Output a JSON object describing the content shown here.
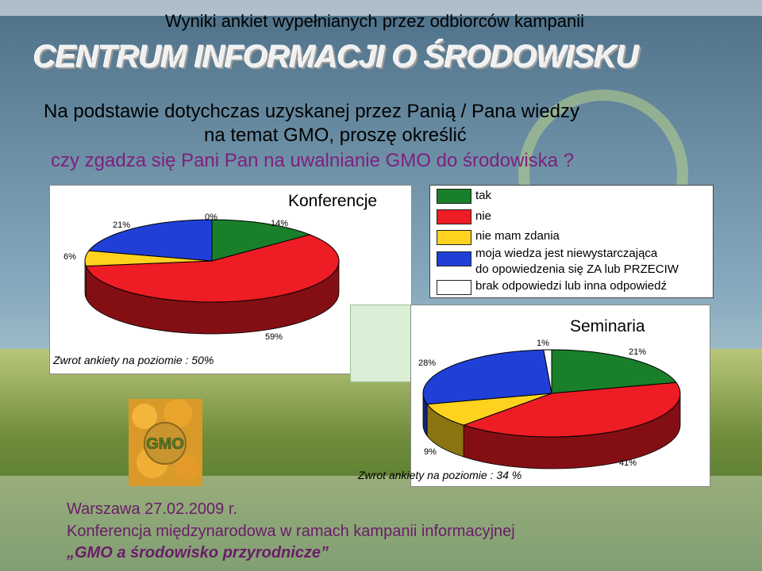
{
  "page": {
    "top_title": "Wyniki ankiet wypełnianych przez odbiorców kampanii",
    "brand": "CENTRUM INFORMACJI O ŚRODOWISKU",
    "question_line1": "Na podstawie dotychczas uzyskanej przez Panią / Pana wiedzy",
    "question_line2": "na temat GMO, proszę określić",
    "question_line3": "czy zgadza się Pani Pan na uwalnianie GMO do środowiska ?",
    "footer_line1": "Warszawa 27.02.2009 r.",
    "footer_line2": "Konferencja międzynarodowa w ramach kampanii informacyjnej",
    "footer_line3": "„GMO a środowisko przyrodnicze”"
  },
  "legend": [
    {
      "label": "tak",
      "color": "#1a7f2a"
    },
    {
      "label": "nie",
      "color": "#ee1c24"
    },
    {
      "label": "nie mam zdania",
      "color": "#ffd21f"
    },
    {
      "label": "moja wiedza jest niewystarczająca\ndo opowiedzenia się ZA lub PRZECIW",
      "color": "#1f3fd6"
    },
    {
      "label": "brak odpowiedzi lub inna odpowiedź",
      "color": "#ffffff"
    }
  ],
  "colors": {
    "tak": "#1a7f2a",
    "nie": "#ee1c24",
    "nie_mam_zdania": "#ffd21f",
    "wiedza": "#1f3fd6",
    "brak": "#ffffff"
  },
  "chart_data": [
    {
      "type": "pie",
      "title": "Konferencje",
      "categories": [
        "tak",
        "nie",
        "nie mam zdania",
        "moja wiedza jest niewystarczająca do opowiedzenia się ZA lub PRZECIW",
        "brak odpowiedzi lub inna odpowiedź"
      ],
      "values": [
        14,
        59,
        6,
        21,
        0
      ],
      "labels": [
        "14%",
        "59%",
        "6%",
        "21%",
        "0%"
      ],
      "note": "Zwrot ankiety na poziomie : 50%"
    },
    {
      "type": "pie",
      "title": "Seminaria",
      "categories": [
        "tak",
        "nie",
        "nie mam zdania",
        "moja wiedza jest niewystarczająca do opowiedzenia się ZA lub PRZECIW",
        "brak odpowiedzi lub inna odpowiedź"
      ],
      "values": [
        21,
        41,
        9,
        28,
        1
      ],
      "labels": [
        "21%",
        "41%",
        "9%",
        "28%",
        "1%"
      ],
      "note": "Zwrot ankiety na poziomie : 34 %"
    }
  ]
}
